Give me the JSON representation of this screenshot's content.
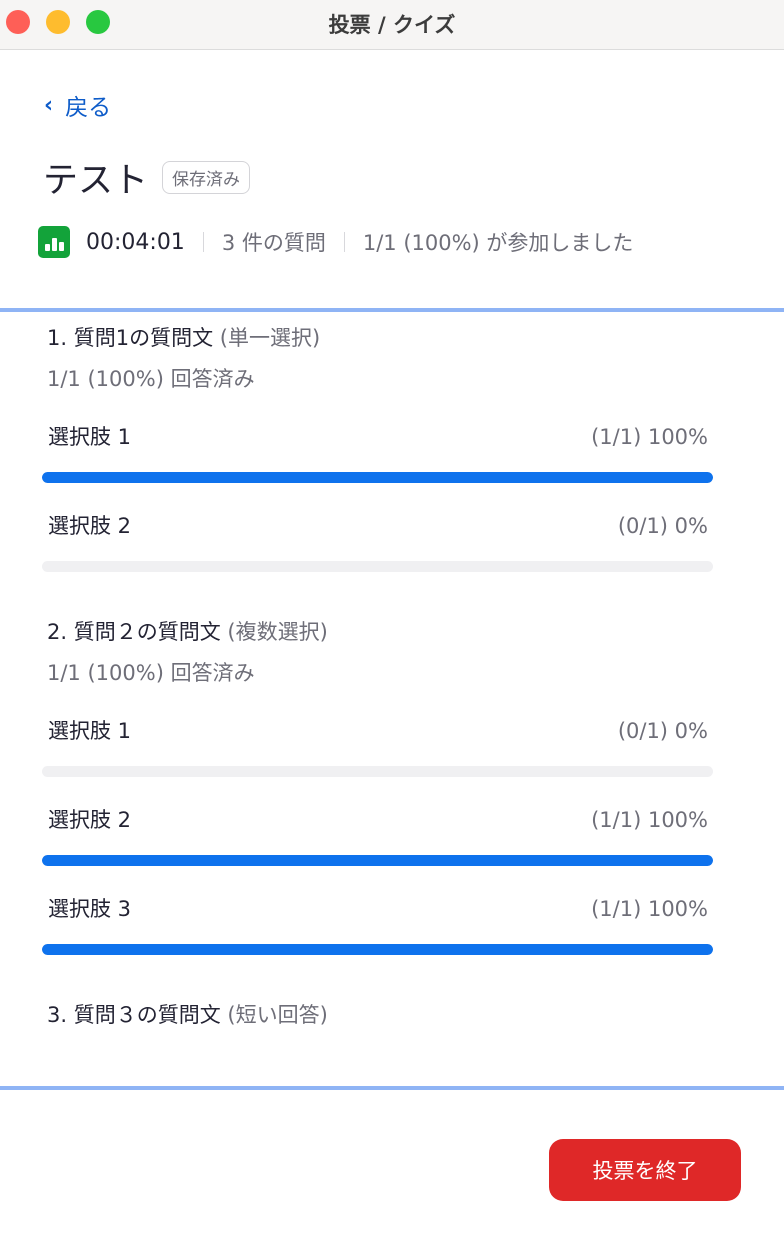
{
  "window": {
    "title": "投票 / クイズ"
  },
  "back_label": "戻る",
  "poll": {
    "title": "テスト",
    "status_badge": "保存済み",
    "elapsed": "00:04:01",
    "question_count": "3 件の質問",
    "participation": "1/1 (100%) が参加しました"
  },
  "colors": {
    "accent": "#0e72ed",
    "danger": "#df2828",
    "poll_icon": "#13a33a",
    "divider": "#8fb4f5"
  },
  "questions": [
    {
      "title": "1. 質問1の質問文",
      "type": "(単一選択)",
      "answered": "1/1 (100%) 回答済み",
      "options": [
        {
          "label": "選択肢 1",
          "result": "(1/1) 100%",
          "percent": 100
        },
        {
          "label": "選択肢 2",
          "result": "(0/1) 0%",
          "percent": 0
        }
      ]
    },
    {
      "title": "2. 質問２の質問文",
      "type": "(複数選択)",
      "answered": "1/1 (100%) 回答済み",
      "options": [
        {
          "label": "選択肢 1",
          "result": "(0/1) 0%",
          "percent": 0
        },
        {
          "label": "選択肢 2",
          "result": "(1/1) 100%",
          "percent": 100
        },
        {
          "label": "選択肢 3",
          "result": "(1/1) 100%",
          "percent": 100
        }
      ]
    },
    {
      "title": "3. 質問３の質問文",
      "type": "(短い回答)"
    }
  ],
  "end_button_label": "投票を終了"
}
